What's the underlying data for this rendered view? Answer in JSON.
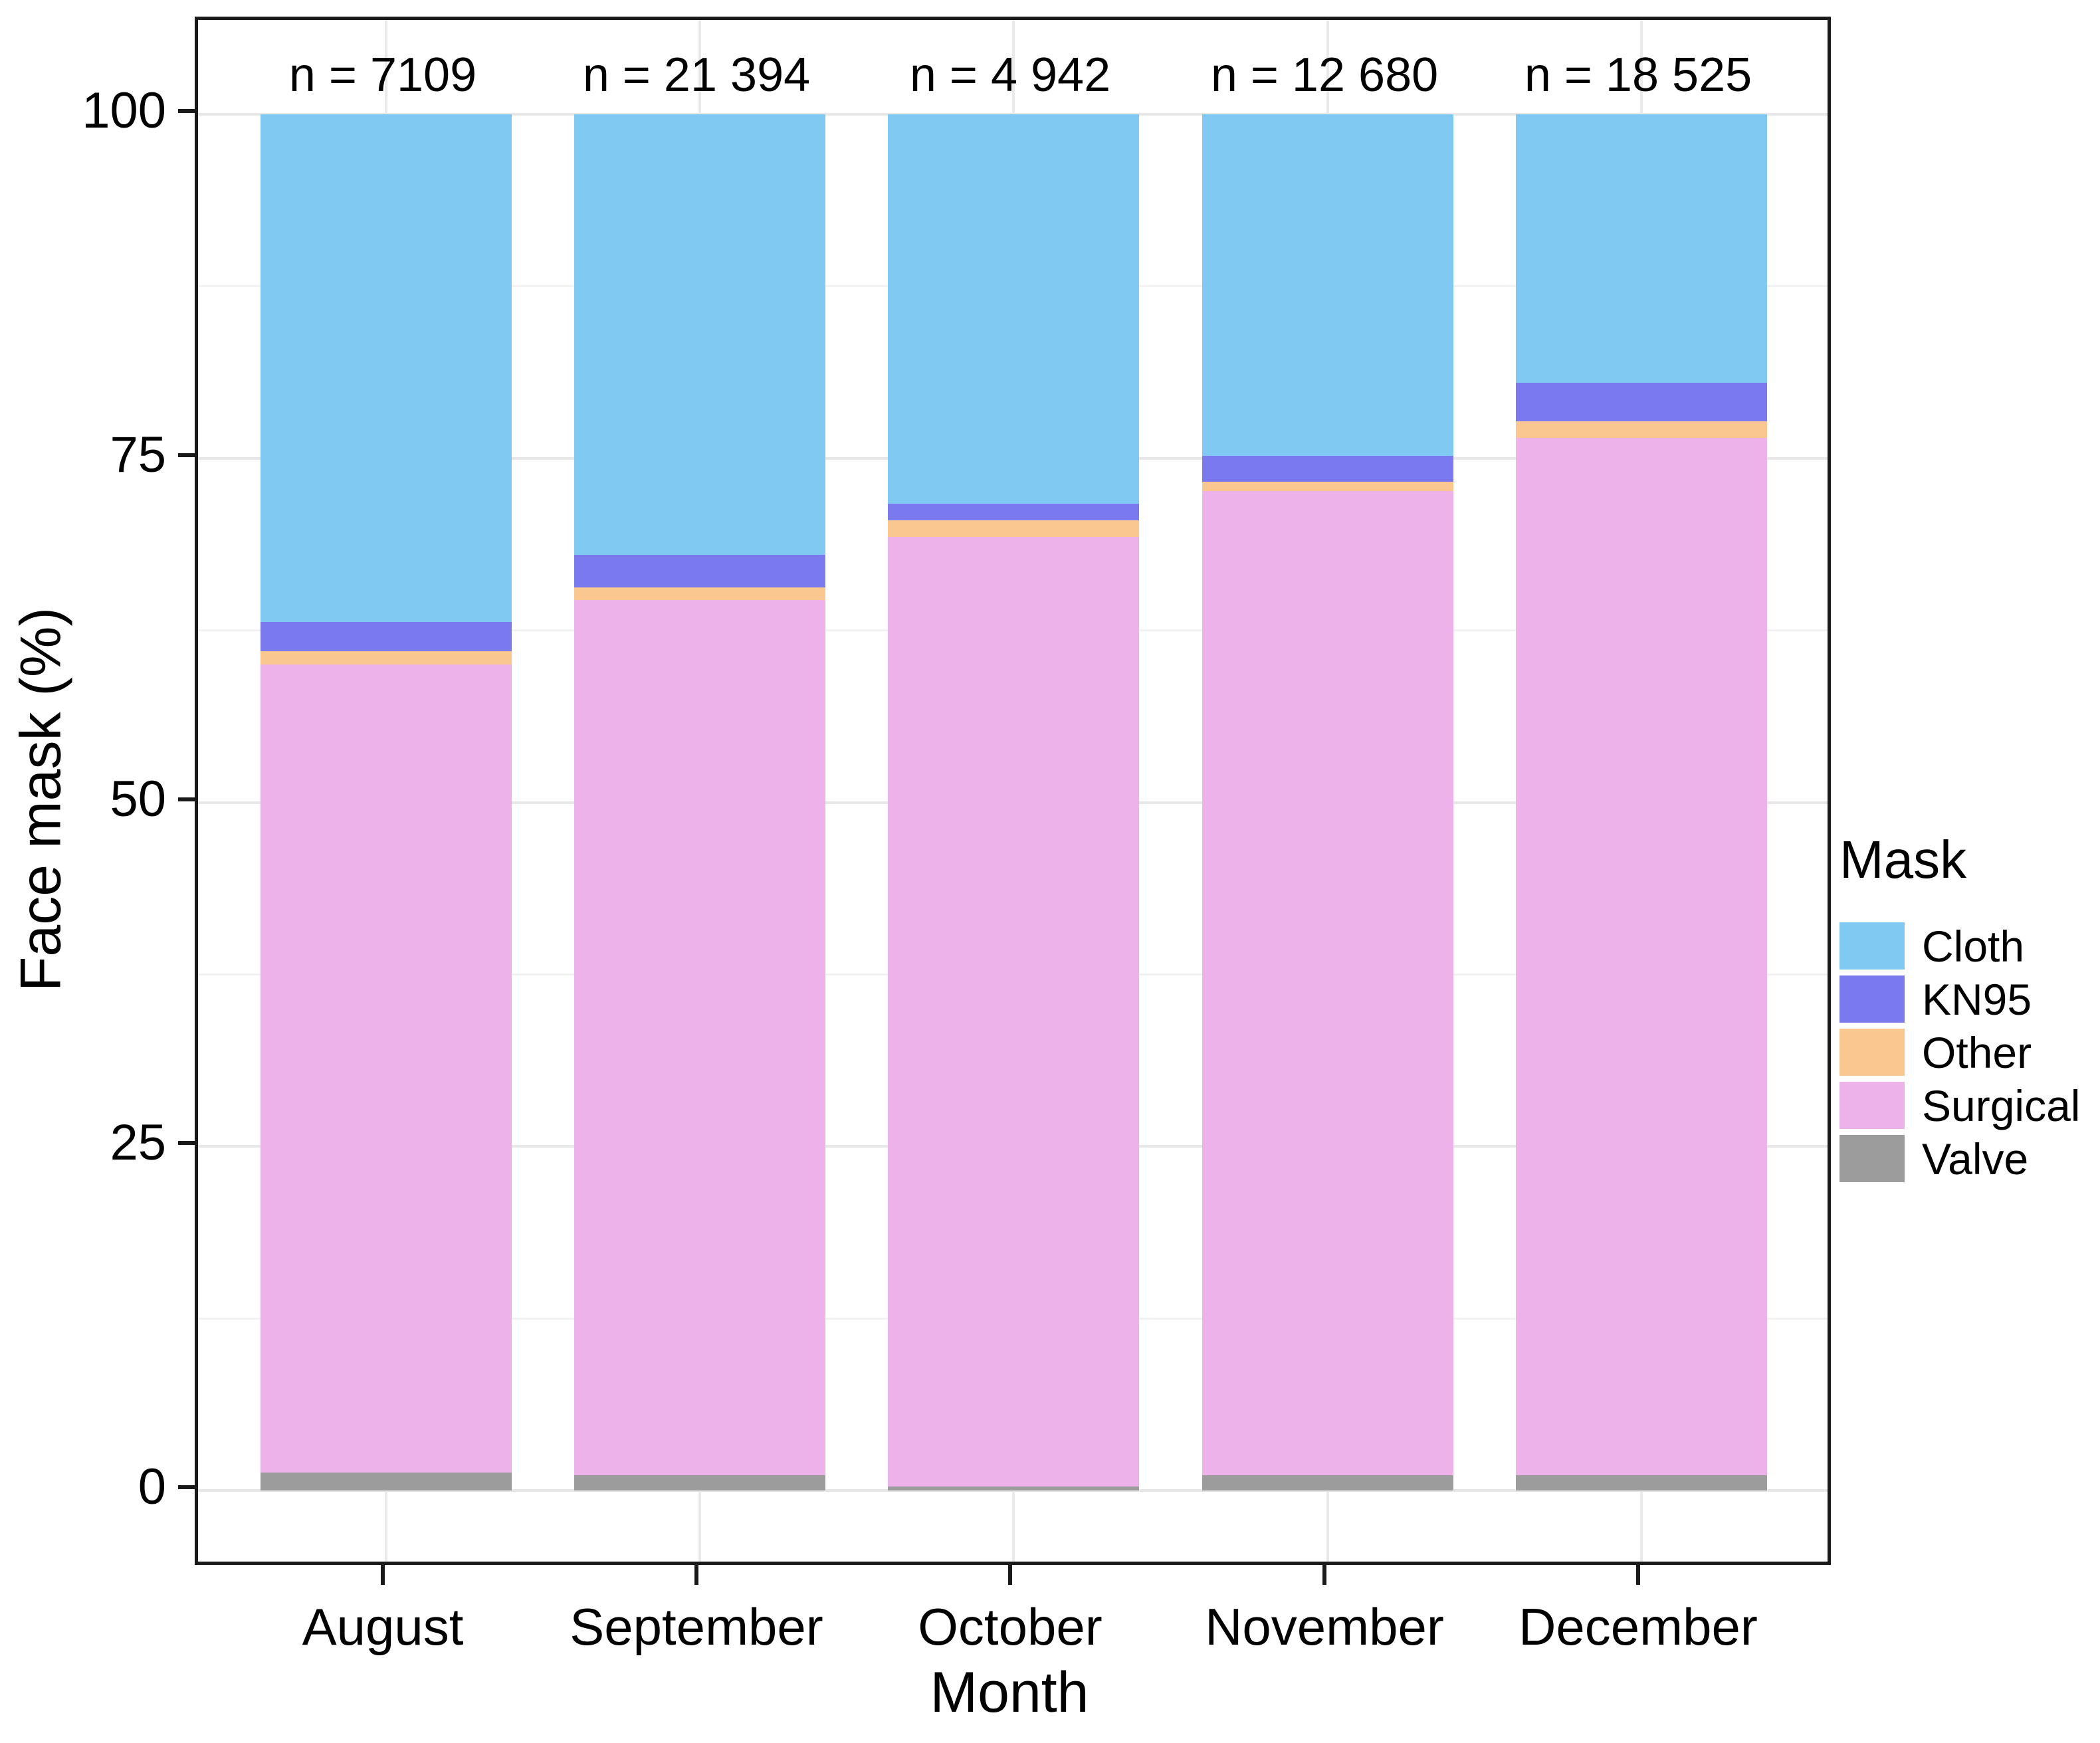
{
  "chart_data": {
    "type": "bar",
    "stacking": "percent",
    "orientation": "vertical",
    "xlabel": "Month",
    "ylabel": "Face mask (%)",
    "ylim": [
      0,
      100
    ],
    "yticks": [
      0,
      25,
      50,
      75,
      100
    ],
    "yticks_minor": [
      12.5,
      37.5,
      62.5,
      87.5
    ],
    "categories": [
      "August",
      "September",
      "October",
      "November",
      "December"
    ],
    "bar_counts": [
      "n = 7109",
      "n = 21 394",
      "n = 4 942",
      "n = 12 680",
      "n = 18 525"
    ],
    "series": [
      {
        "name": "Cloth",
        "color": "#7FC9F3",
        "values": [
          36.9,
          32.0,
          28.3,
          24.8,
          19.5
        ]
      },
      {
        "name": "KN95",
        "color": "#7B79EE",
        "values": [
          2.1,
          2.4,
          1.2,
          1.9,
          2.8
        ]
      },
      {
        "name": "Other",
        "color": "#FBC791",
        "values": [
          1.0,
          0.9,
          1.2,
          0.7,
          1.2
        ]
      },
      {
        "name": "Surgical",
        "color": "#EDB2E9",
        "values": [
          58.7,
          63.6,
          69.0,
          71.5,
          75.4
        ]
      },
      {
        "name": "Valve",
        "color": "#9C9C9C",
        "values": [
          1.3,
          1.1,
          0.3,
          1.1,
          1.1
        ]
      }
    ],
    "legend": {
      "title": "Mask",
      "position": "right",
      "entries": [
        "Cloth",
        "KN95",
        "Other",
        "Surgical",
        "Valve"
      ]
    },
    "grid": {
      "major_color": "#E7E7E7",
      "minor_color": "#F2F2F2",
      "vertical_color": "#EAEAEA",
      "vertical_on": true
    },
    "panel_border_color": "#1a1a1a",
    "text_color": "#000000"
  }
}
